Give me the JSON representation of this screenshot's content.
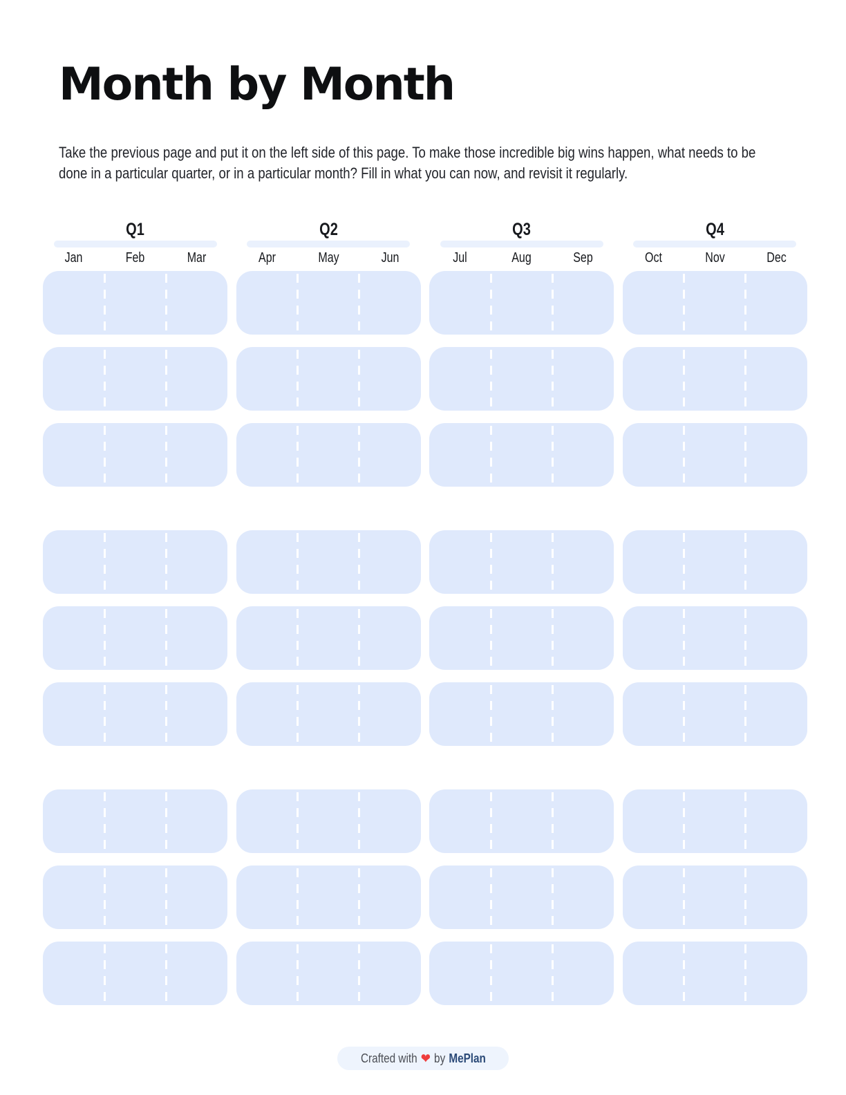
{
  "page": {
    "title": "Month by Month",
    "description_lines": [
      "Take the previous page and put it on the left side of this page. To make those incredible big wins happen, what needs to be",
      "done in a particular quarter, or in a particular month? Fill in what you can now, and revisit it regularly."
    ]
  },
  "quarters": [
    {
      "label": "Q1",
      "months": [
        "Jan",
        "Feb",
        "Mar"
      ]
    },
    {
      "label": "Q2",
      "months": [
        "Apr",
        "May",
        "Jun"
      ]
    },
    {
      "label": "Q3",
      "months": [
        "Jul",
        "Aug",
        "Sep"
      ]
    },
    {
      "label": "Q4",
      "months": [
        "Oct",
        "Nov",
        "Dec"
      ]
    }
  ],
  "grid": {
    "groups": 3,
    "rows_per_group": 3,
    "columns": 4,
    "cells_per_box": 3
  },
  "footer": {
    "prefix": "Crafted with",
    "heart_icon": "❤",
    "mid": "by",
    "brand": "MePlan"
  },
  "colors": {
    "box_fill": "#dfe9fc",
    "quarter_bar": "#eaf1fd",
    "footer_pill": "#eef4fd",
    "heart": "#ee3d3d",
    "brand_text": "#2b4a78"
  }
}
